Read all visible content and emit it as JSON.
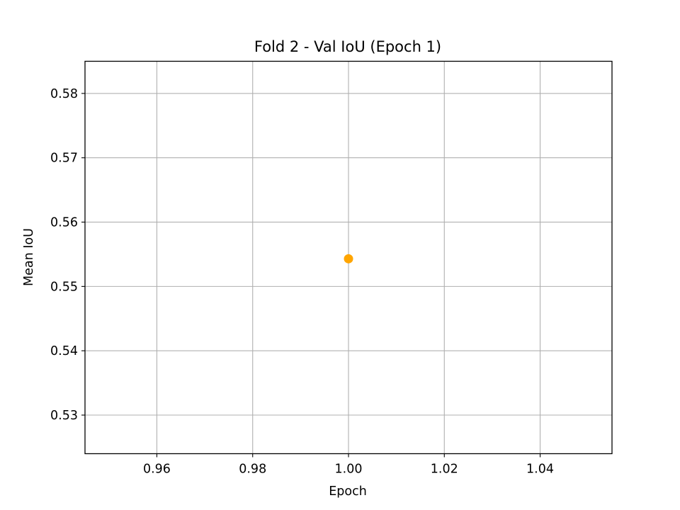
{
  "chart_data": {
    "type": "scatter",
    "title": "Fold 2 - Val IoU (Epoch 1)",
    "xlabel": "Epoch",
    "ylabel": "Mean IoU",
    "xlim": [
      0.945,
      1.055
    ],
    "ylim": [
      0.524,
      0.585
    ],
    "x_ticks": [
      0.96,
      0.98,
      1.0,
      1.02,
      1.04
    ],
    "x_tick_labels": [
      "0.96",
      "0.98",
      "1.00",
      "1.02",
      "1.04"
    ],
    "y_ticks": [
      0.53,
      0.54,
      0.55,
      0.56,
      0.57,
      0.58
    ],
    "y_tick_labels": [
      "0.53",
      "0.54",
      "0.55",
      "0.56",
      "0.57",
      "0.58"
    ],
    "grid": true,
    "series": [
      {
        "x": [
          1.0
        ],
        "y": [
          0.5543
        ],
        "color": "#ffa500"
      }
    ]
  }
}
